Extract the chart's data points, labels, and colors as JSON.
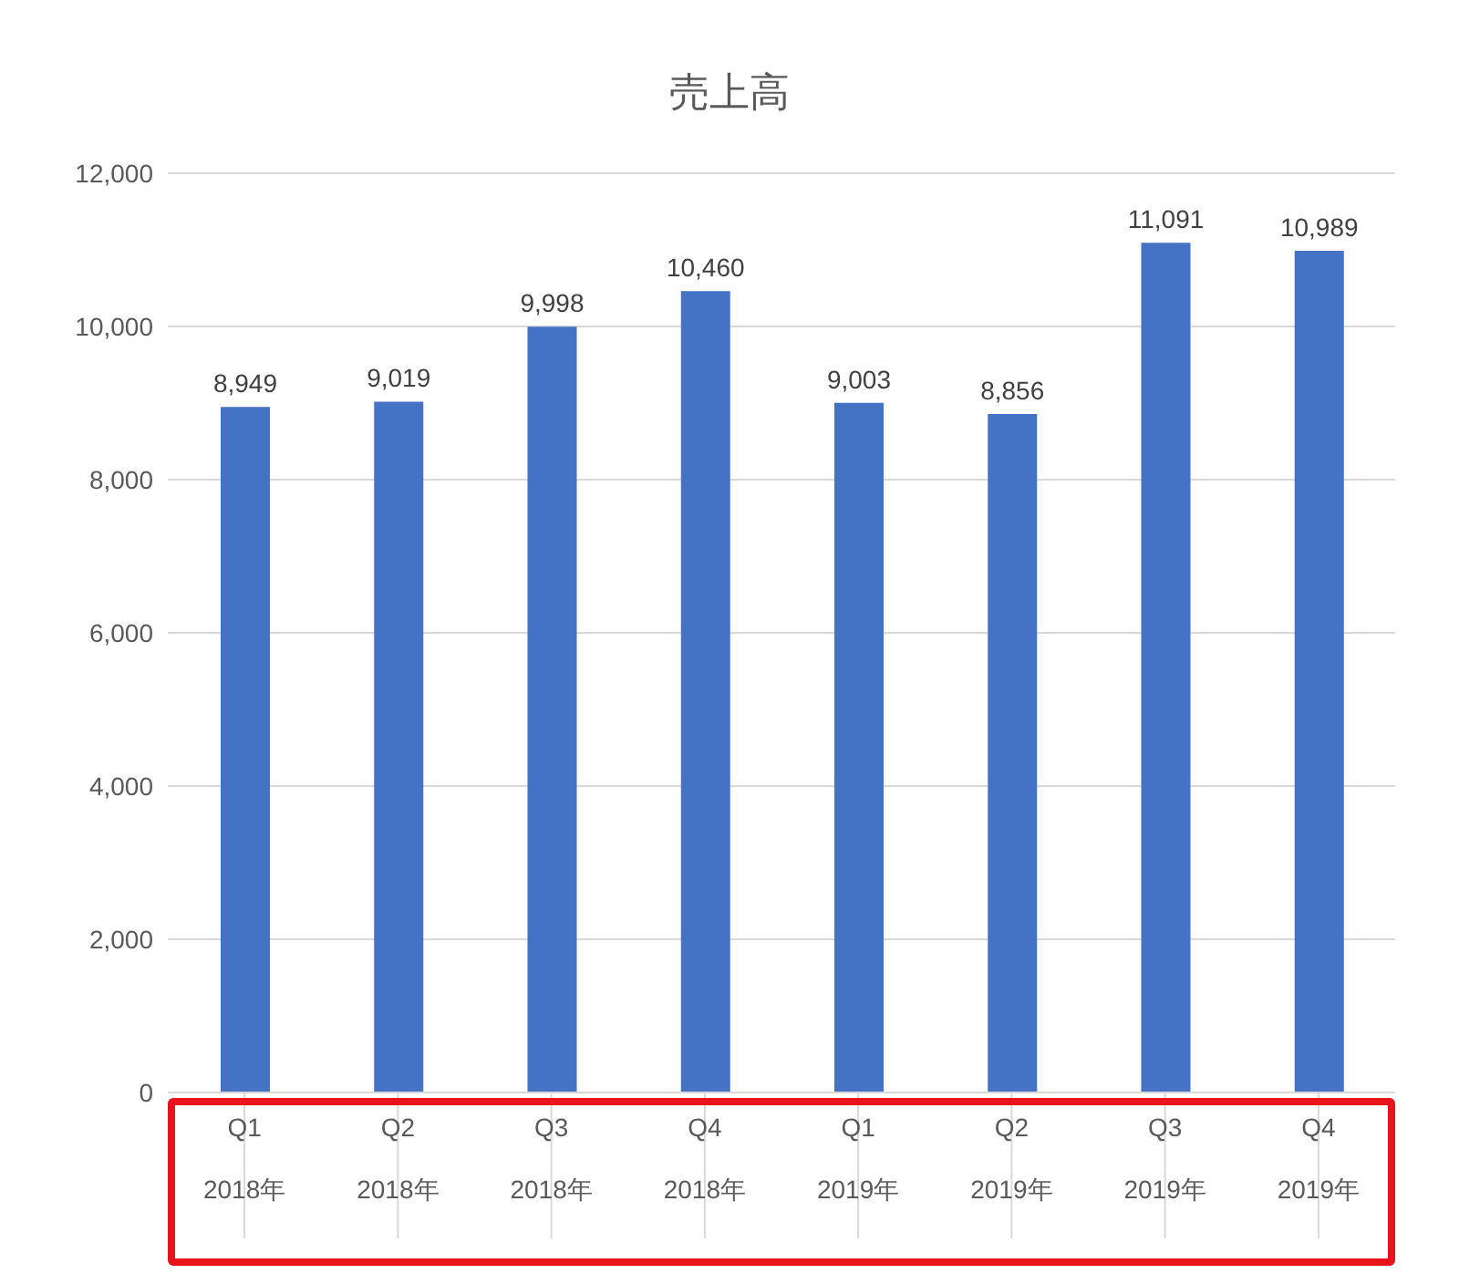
{
  "chart_data": {
    "type": "bar",
    "title": "売上高",
    "categories": [
      "Q1\n2018年",
      "Q2\n2018年",
      "Q3\n2018年",
      "Q4\n2018年",
      "Q1\n2019年",
      "Q2\n2019年",
      "Q3\n2019年",
      "Q4\n2019年"
    ],
    "values": [
      8949,
      9019,
      9998,
      10460,
      9003,
      8856,
      11091,
      10989
    ],
    "value_labels": [
      "8,949",
      "9,019",
      "9,998",
      "10,460",
      "9,003",
      "8,856",
      "11,091",
      "10,989"
    ],
    "color": "#4472c4",
    "ylim": [
      0,
      12000
    ],
    "yticks": [
      0,
      {
        "value": 2000,
        "label": "2,000"
      },
      {
        "value": 4000,
        "label": "4,000"
      },
      {
        "value": 6000,
        "label": "6,000"
      },
      {
        "value": 8000,
        "label": "8,000"
      },
      {
        "value": 10000,
        "label": "10,000"
      },
      {
        "value": 12000,
        "label": "12,000"
      }
    ],
    "grid": "y"
  }
}
